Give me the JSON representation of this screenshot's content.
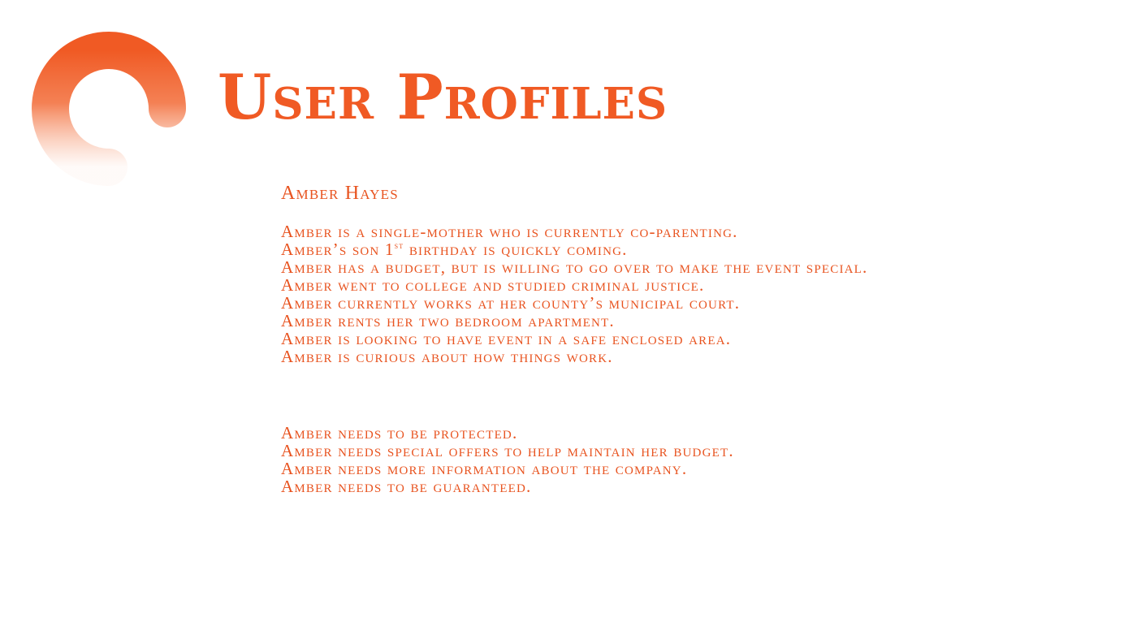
{
  "header": {
    "title": "User Profiles",
    "logo_icon": "orange-ring-logo-icon",
    "accent_color": "#f05a24"
  },
  "persona": {
    "name": "Amber Hayes",
    "traits": [
      "Amber is a single-mother who is currently co-parenting.",
      {
        "pre": "Amber’s son 1",
        "sup": "st",
        "post": " birthday is quickly coming."
      },
      "Amber has a budget, but is willing to go over to make the event special.",
      "Amber went to college and studied criminal justice.",
      "Amber currently works at her county’s municipal court.",
      "Amber rents her two bedroom apartment.",
      "Amber is looking to have event in a safe enclosed area.",
      "Amber is curious about how things work."
    ],
    "needs": [
      "Amber needs to be protected.",
      "Amber needs special offers to help maintain her budget.",
      "Amber needs more information about the company.",
      "Amber needs to be guaranteed."
    ]
  }
}
